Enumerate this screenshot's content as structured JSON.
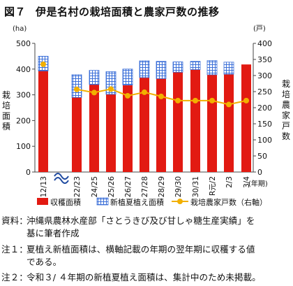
{
  "title": {
    "number": "図７",
    "text": "伊是名村の栽培面積と農家戸数の推移"
  },
  "chart_data": {
    "type": "bar",
    "categories": [
      "H12/13",
      "22/23",
      "24/25",
      "25/26",
      "26/27",
      "27/28",
      "28/29",
      "29/30",
      "30/31",
      "R元/2",
      "2/3",
      "3/4"
    ],
    "series": [
      {
        "name": "収穫面積",
        "type": "bar",
        "axis": "left",
        "color": "#e21a12",
        "values": [
          393,
          290,
          340,
          302,
          338,
          367,
          363,
          388,
          398,
          378,
          380,
          418
        ]
      },
      {
        "name": "新植夏植え面積",
        "type": "bar-stack",
        "axis": "left",
        "color": "#3b6fd8",
        "values": [
          57,
          88,
          55,
          88,
          62,
          65,
          67,
          40,
          32,
          55,
          47,
          null
        ]
      },
      {
        "name": "栽培農家戸数（右軸）",
        "type": "line",
        "axis": "right",
        "color": "#f2b000",
        "values": [
          335,
          257,
          247,
          258,
          237,
          248,
          235,
          222,
          222,
          222,
          210,
          222
        ]
      }
    ],
    "y_left": {
      "label": "栽培面積",
      "unit": "(ha)",
      "ticks": [
        "0",
        "100",
        "200",
        "300",
        "400",
        "500"
      ],
      "range": [
        0,
        500
      ]
    },
    "y_right": {
      "label": "栽培農家戸数",
      "unit": "(戸)",
      "ticks": [
        "0",
        "50",
        "100",
        "150",
        "200",
        "250",
        "300",
        "350",
        "400"
      ],
      "range": [
        0,
        400
      ]
    },
    "x_unit": "(年期)",
    "axis_break": "between H12/13 and 22/23",
    "legend_position": "bottom",
    "grid": false
  },
  "notes": [
    {
      "label": "資料：",
      "lines": [
        "沖縄県農林水産部「さとうきび及び甘しゃ糖生産実績」を",
        "基に筆者作成"
      ]
    },
    {
      "label": "注１：",
      "lines": [
        "夏植え新植面積は、横軸記載の年期の翌年期に収穫する値",
        "である。"
      ]
    },
    {
      "label": "注２：",
      "lines": [
        "令和３/ ４年期の新植夏植え面積は、集計中のため未掲載。"
      ]
    }
  ]
}
